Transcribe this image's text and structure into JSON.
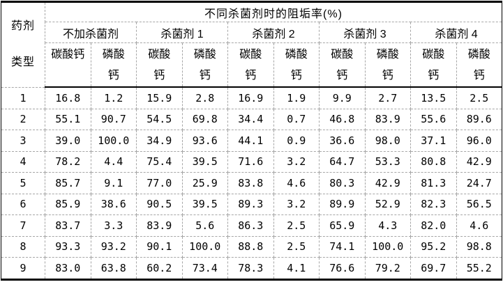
{
  "table": {
    "corner_label": "药剂\n类型",
    "title": "不同杀菌剂时的阻垢率(%)",
    "groups": [
      "不加杀菌剂",
      "杀菌剂 1",
      "杀菌剂 2",
      "杀菌剂 3",
      "杀菌剂 4"
    ],
    "subcolumns": [
      "碳酸钙",
      "磷酸\n钙",
      "碳酸\n钙",
      "磷酸\n钙",
      "碳酸\n钙",
      "磷酸\n钙",
      "碳酸\n钙",
      "磷酸\n钙",
      "碳酸\n钙",
      "磷酸\n钙"
    ],
    "rows": [
      {
        "label": "1",
        "values": [
          "16.8",
          "1.2",
          "15.9",
          "2.8",
          "16.9",
          "1.9",
          "9.9",
          "2.7",
          "13.5",
          "2.5"
        ]
      },
      {
        "label": "2",
        "values": [
          "55.1",
          "90.7",
          "54.5",
          "69.8",
          "34.4",
          "0.7",
          "46.8",
          "83.9",
          "55.6",
          "89.6"
        ]
      },
      {
        "label": "3",
        "values": [
          "39.0",
          "100.0",
          "34.9",
          "93.6",
          "44.1",
          "0.9",
          "36.6",
          "98.0",
          "37.1",
          "96.0"
        ]
      },
      {
        "label": "4",
        "values": [
          "78.2",
          "4.4",
          "75.4",
          "39.5",
          "71.6",
          "3.2",
          "64.7",
          "53.3",
          "80.8",
          "42.9"
        ]
      },
      {
        "label": "5",
        "values": [
          "85.7",
          "9.1",
          "77.0",
          "25.9",
          "83.8",
          "4.6",
          "80.3",
          "42.9",
          "81.3",
          "24.7"
        ]
      },
      {
        "label": "6",
        "values": [
          "85.9",
          "38.6",
          "90.5",
          "39.5",
          "89.3",
          "3.2",
          "89.9",
          "52.9",
          "82.3",
          "56.5"
        ]
      },
      {
        "label": "7",
        "values": [
          "83.7",
          "3.3",
          "83.9",
          "5.6",
          "86.3",
          "2.5",
          "65.9",
          "4.3",
          "82.0",
          "4.6"
        ]
      },
      {
        "label": "8",
        "values": [
          "93.3",
          "93.2",
          "90.1",
          "100.0",
          "88.8",
          "2.5",
          "74.1",
          "100.0",
          "95.2",
          "98.8"
        ]
      },
      {
        "label": "9",
        "values": [
          "83.0",
          "63.8",
          "60.2",
          "73.4",
          "78.3",
          "4.1",
          "76.6",
          "79.2",
          "69.7",
          "55.2"
        ]
      }
    ],
    "colors": {
      "border_solid": "#000000",
      "border_dashed": "#a6a6a6",
      "background": "#ffffff",
      "text": "#000000"
    }
  }
}
